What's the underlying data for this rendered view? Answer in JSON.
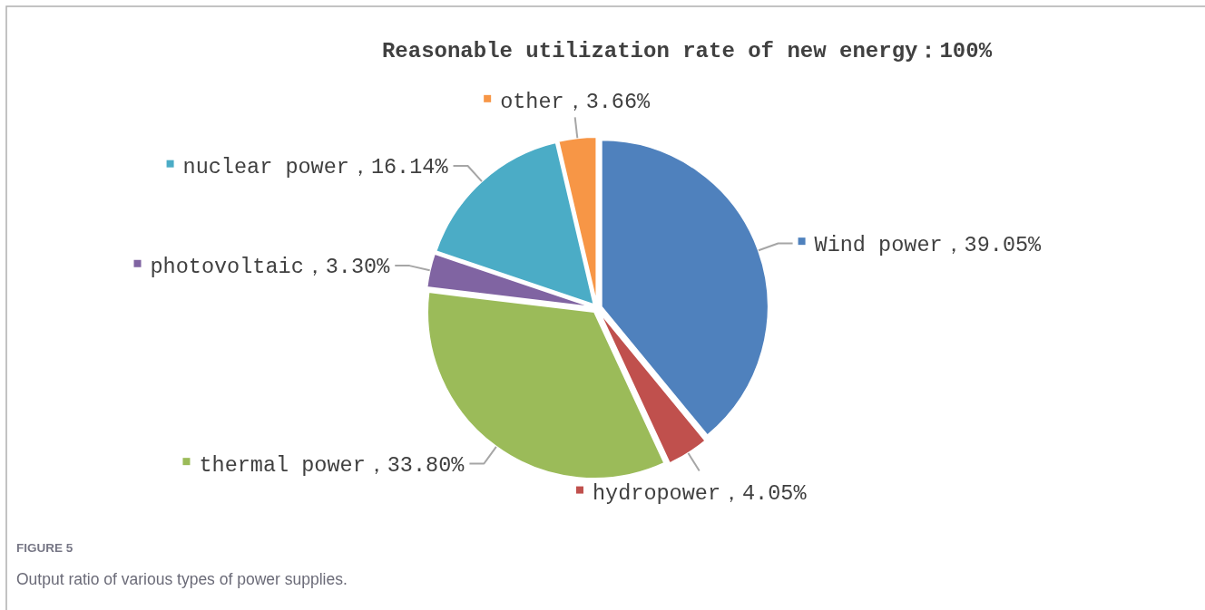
{
  "chart_data": {
    "type": "pie",
    "title": "Reasonable utilization rate of new energy：100%",
    "categories": [
      "Wind power",
      "hydropower",
      "thermal power",
      "photovoltaic",
      "nuclear power",
      "other"
    ],
    "values": [
      39.05,
      4.05,
      33.8,
      3.3,
      16.14,
      3.66
    ],
    "colors": [
      "#4f81bd",
      "#c0504d",
      "#9bbb59",
      "#8064a2",
      "#4bacc6",
      "#f79646"
    ],
    "value_labels": [
      "39.05%",
      "4.05%",
      "33.80%",
      "3.30%",
      "16.14%",
      "3.66%"
    ],
    "legend": "left",
    "annotations": [
      "FIGURE 5",
      "Output ratio of various types of power supplies."
    ]
  }
}
